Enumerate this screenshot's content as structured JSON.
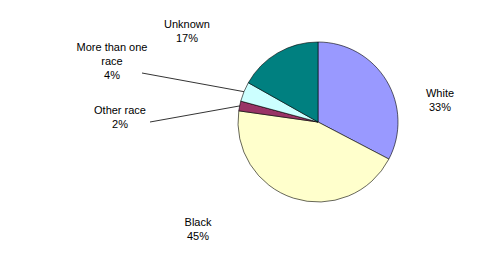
{
  "chart_data": {
    "type": "pie",
    "categories": [
      "White",
      "Black",
      "Other race",
      "More than one race",
      "Unknown"
    ],
    "values": [
      33,
      45,
      2,
      4,
      17
    ],
    "value_labels": [
      "33%",
      "45%",
      "2%",
      "4%",
      "17%"
    ],
    "colors": [
      "#9999ff",
      "#ffffcc",
      "#993366",
      "#ccffff",
      "#008080"
    ],
    "data_labels": true
  }
}
